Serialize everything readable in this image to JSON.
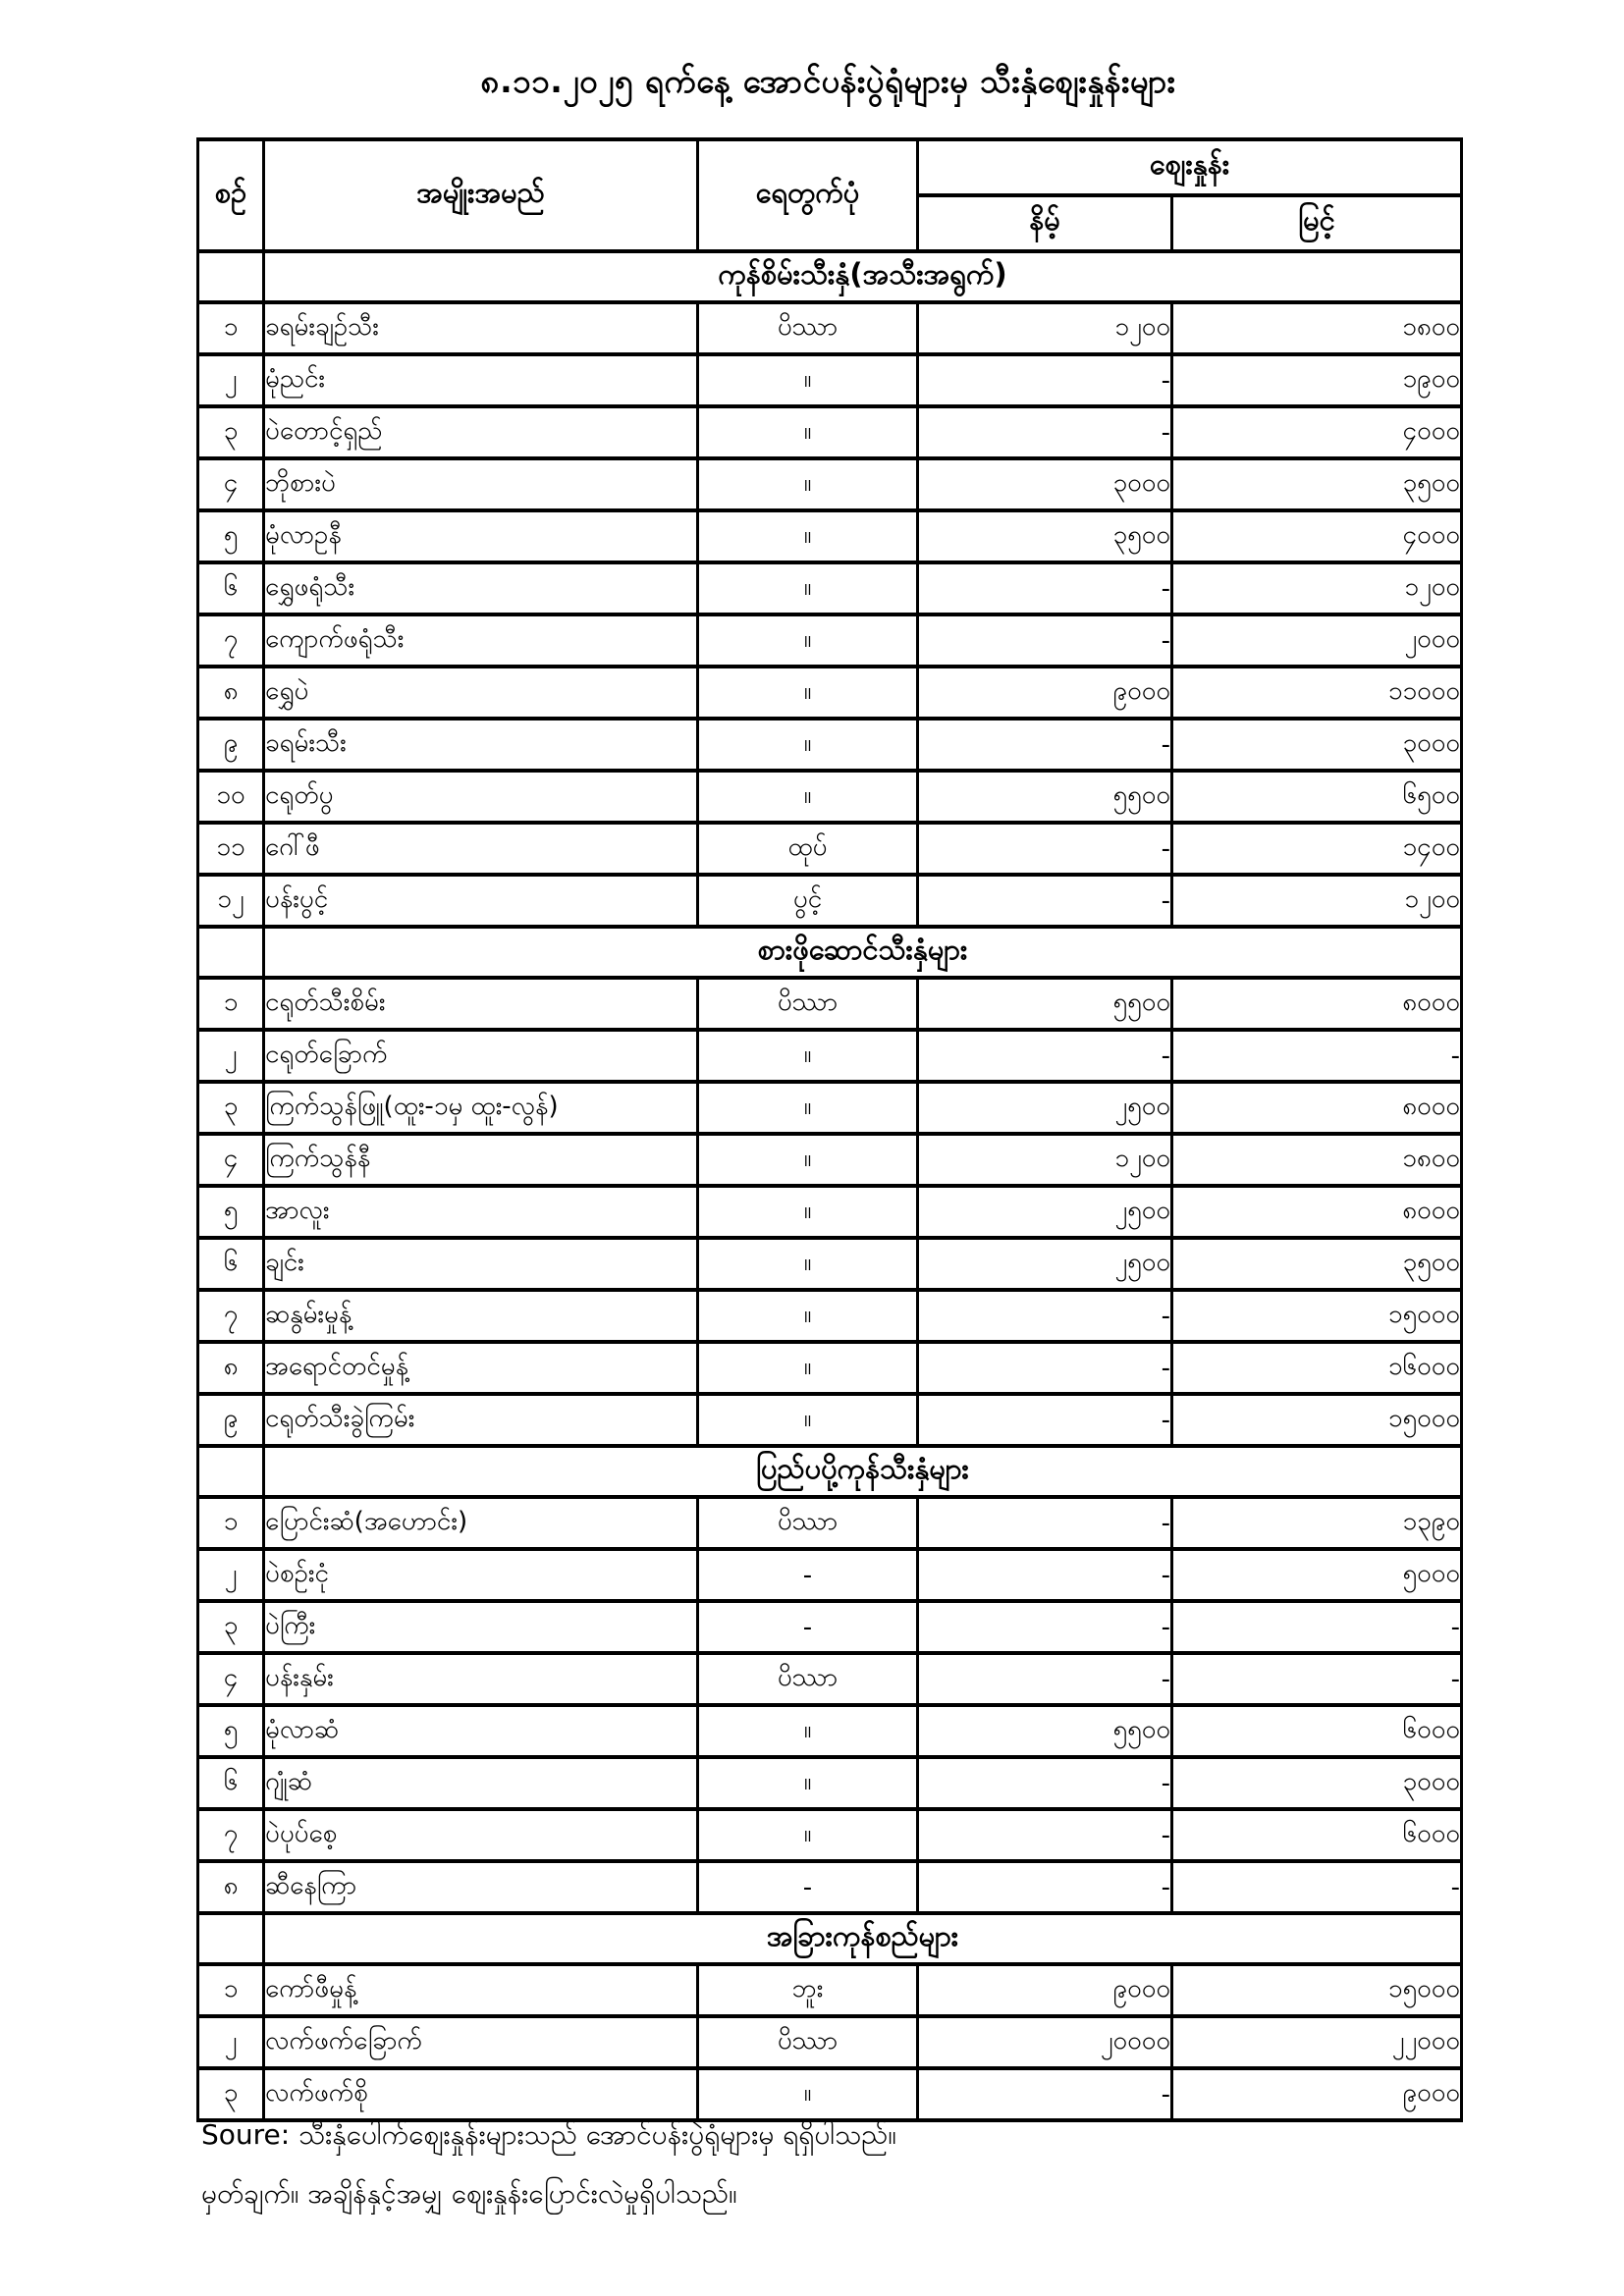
{
  "title": "၈.၁၁.၂၀၂၅ ရက်နေ့ အောင်ပန်းပွဲရုံများမှ သီးနှံစျေးနှုန်းများ",
  "table": {
    "headers": {
      "no": "စဉ်",
      "name": "အမျိုးအမည်",
      "unit": "ရေတွက်ပုံ",
      "price": "စျေးနှုန်း",
      "low": "နိမ့်",
      "high": "မြင့်"
    },
    "sections": [
      {
        "title": "ကုန်စိမ်းသီးနှံ(အသီးအရွက်)",
        "rows": [
          {
            "no": "၁",
            "name": "ခရမ်းချဉ်သီး",
            "unit": "ပိဿာ",
            "low": "၁၂၀၀",
            "high": "၁၈၀၀"
          },
          {
            "no": "၂",
            "name": "မုံညင်း",
            "unit": "။",
            "low": "-",
            "high": "၁၉၀၀"
          },
          {
            "no": "၃",
            "name": "ပဲတောင့်ရှည်",
            "unit": "။",
            "low": "-",
            "high": "၄၀၀၀"
          },
          {
            "no": "၄",
            "name": "ဘိုစားပဲ",
            "unit": "။",
            "low": "၃၀၀၀",
            "high": "၃၅၀၀"
          },
          {
            "no": "၅",
            "name": "မုံလာဥနီ",
            "unit": "။",
            "low": "၃၅၀၀",
            "high": "၄၀၀၀"
          },
          {
            "no": "၆",
            "name": "ရွှေဖရုံသီး",
            "unit": "။",
            "low": "-",
            "high": "၁၂၀၀"
          },
          {
            "no": "၇",
            "name": "ကျောက်ဖရုံသီး",
            "unit": "။",
            "low": "-",
            "high": "၂၀၀၀"
          },
          {
            "no": "၈",
            "name": "ရွှေပဲ",
            "unit": "။",
            "low": "၉၀၀၀",
            "high": "၁၁၀၀၀"
          },
          {
            "no": "၉",
            "name": "ခရမ်းသီး",
            "unit": "။",
            "low": "-",
            "high": "၃၀၀၀"
          },
          {
            "no": "၁၀",
            "name": "ငရုတ်ပွ",
            "unit": "။",
            "low": "၅၅၀၀",
            "high": "၆၅၀၀"
          },
          {
            "no": "၁၁",
            "name": "ဂေါ်ဖီ",
            "unit": "ထုပ်",
            "low": "-",
            "high": "၁၄၀၀"
          },
          {
            "no": "၁၂",
            "name": "ပန်းပွင့်",
            "unit": "ပွင့်",
            "low": "-",
            "high": "၁၂၀၀"
          }
        ]
      },
      {
        "title": "စားဖိုဆောင်သီးနှံများ",
        "rows": [
          {
            "no": "၁",
            "name": "ငရုတ်သီးစိမ်း",
            "unit": "ပိဿာ",
            "low": "၅၅၀၀",
            "high": "၈၀၀၀"
          },
          {
            "no": "၂",
            "name": "ငရုတ်ခြောက်",
            "unit": "။",
            "low": "-",
            "high": "-"
          },
          {
            "no": "၃",
            "name": "ကြက်သွန်ဖြူ(ထူး-၁မှ ထူး-လွန်)",
            "unit": "။",
            "low": "၂၅၀၀",
            "high": "၈၀၀၀"
          },
          {
            "no": "၄",
            "name": "ကြက်သွန်နီ",
            "unit": "။",
            "low": "၁၂၀၀",
            "high": "၁၈၀၀"
          },
          {
            "no": "၅",
            "name": "အာလူး",
            "unit": "။",
            "low": "၂၅၀၀",
            "high": "၈၀၀၀"
          },
          {
            "no": "၆",
            "name": "ချင်း",
            "unit": "။",
            "low": "၂၅၀၀",
            "high": "၃၅၀၀"
          },
          {
            "no": "၇",
            "name": "ဆနွမ်းမှုန့်",
            "unit": "။",
            "low": "-",
            "high": "၁၅၀၀၀"
          },
          {
            "no": "၈",
            "name": "အရောင်တင်မှုန့်",
            "unit": "။",
            "low": "-",
            "high": "၁၆၀၀၀"
          },
          {
            "no": "၉",
            "name": "ငရုတ်သီးခွဲကြမ်း",
            "unit": "။",
            "low": "-",
            "high": "၁၅၀၀၀"
          }
        ]
      },
      {
        "title": "ပြည်ပပို့ကုန်သီးနှံများ",
        "rows": [
          {
            "no": "၁",
            "name": "ပြောင်းဆံ(အဟောင်း)",
            "unit": "ပိဿာ",
            "low": "-",
            "high": "၁၃၉၀"
          },
          {
            "no": "၂",
            "name": "ပဲစဉ်းငုံ",
            "unit": "-",
            "low": "-",
            "high": "၅၀၀၀"
          },
          {
            "no": "၃",
            "name": "ပဲကြီး",
            "unit": "-",
            "low": "-",
            "high": "-"
          },
          {
            "no": "၄",
            "name": "ပန်းနှမ်း",
            "unit": "ပိဿာ",
            "low": "-",
            "high": "-"
          },
          {
            "no": "၅",
            "name": "မုံလာဆံ",
            "unit": "။",
            "low": "၅၅၀၀",
            "high": "၆၀၀၀"
          },
          {
            "no": "၆",
            "name": "ဂျုံဆံ",
            "unit": "။",
            "low": "-",
            "high": "၃၀၀၀"
          },
          {
            "no": "၇",
            "name": "ပဲပုပ်စေ့",
            "unit": "။",
            "low": "-",
            "high": "၆၀၀၀"
          },
          {
            "no": "၈",
            "name": "ဆီနေကြာ",
            "unit": "-",
            "low": "-",
            "high": "-"
          }
        ]
      },
      {
        "title": "အခြားကုန်စည်များ",
        "rows": [
          {
            "no": "၁",
            "name": "ကော်ဖီမှုန့်",
            "unit": "ဘူး",
            "low": "၉၀၀၀",
            "high": "၁၅၀၀၀"
          },
          {
            "no": "၂",
            "name": "လက်ဖက်ခြောက်",
            "unit": "ပိဿာ",
            "low": "၂၀၀၀၀",
            "high": "၂၂၀၀၀"
          },
          {
            "no": "၃",
            "name": "လက်ဖက်စို",
            "unit": "။",
            "low": "-",
            "high": "၉၀၀၀"
          }
        ]
      }
    ]
  },
  "footer": {
    "source": "Soure: သီးနှံပေါက်စျေးနှုန်းများသည် အောင်ပန်းပွဲရုံများမှ ရရှိပါသည်။",
    "note": "မှတ်ချက်။  အချိန်နှင့်အမျှ စျေးနှုန်းပြောင်းလဲမှုရှိပါသည်။"
  }
}
